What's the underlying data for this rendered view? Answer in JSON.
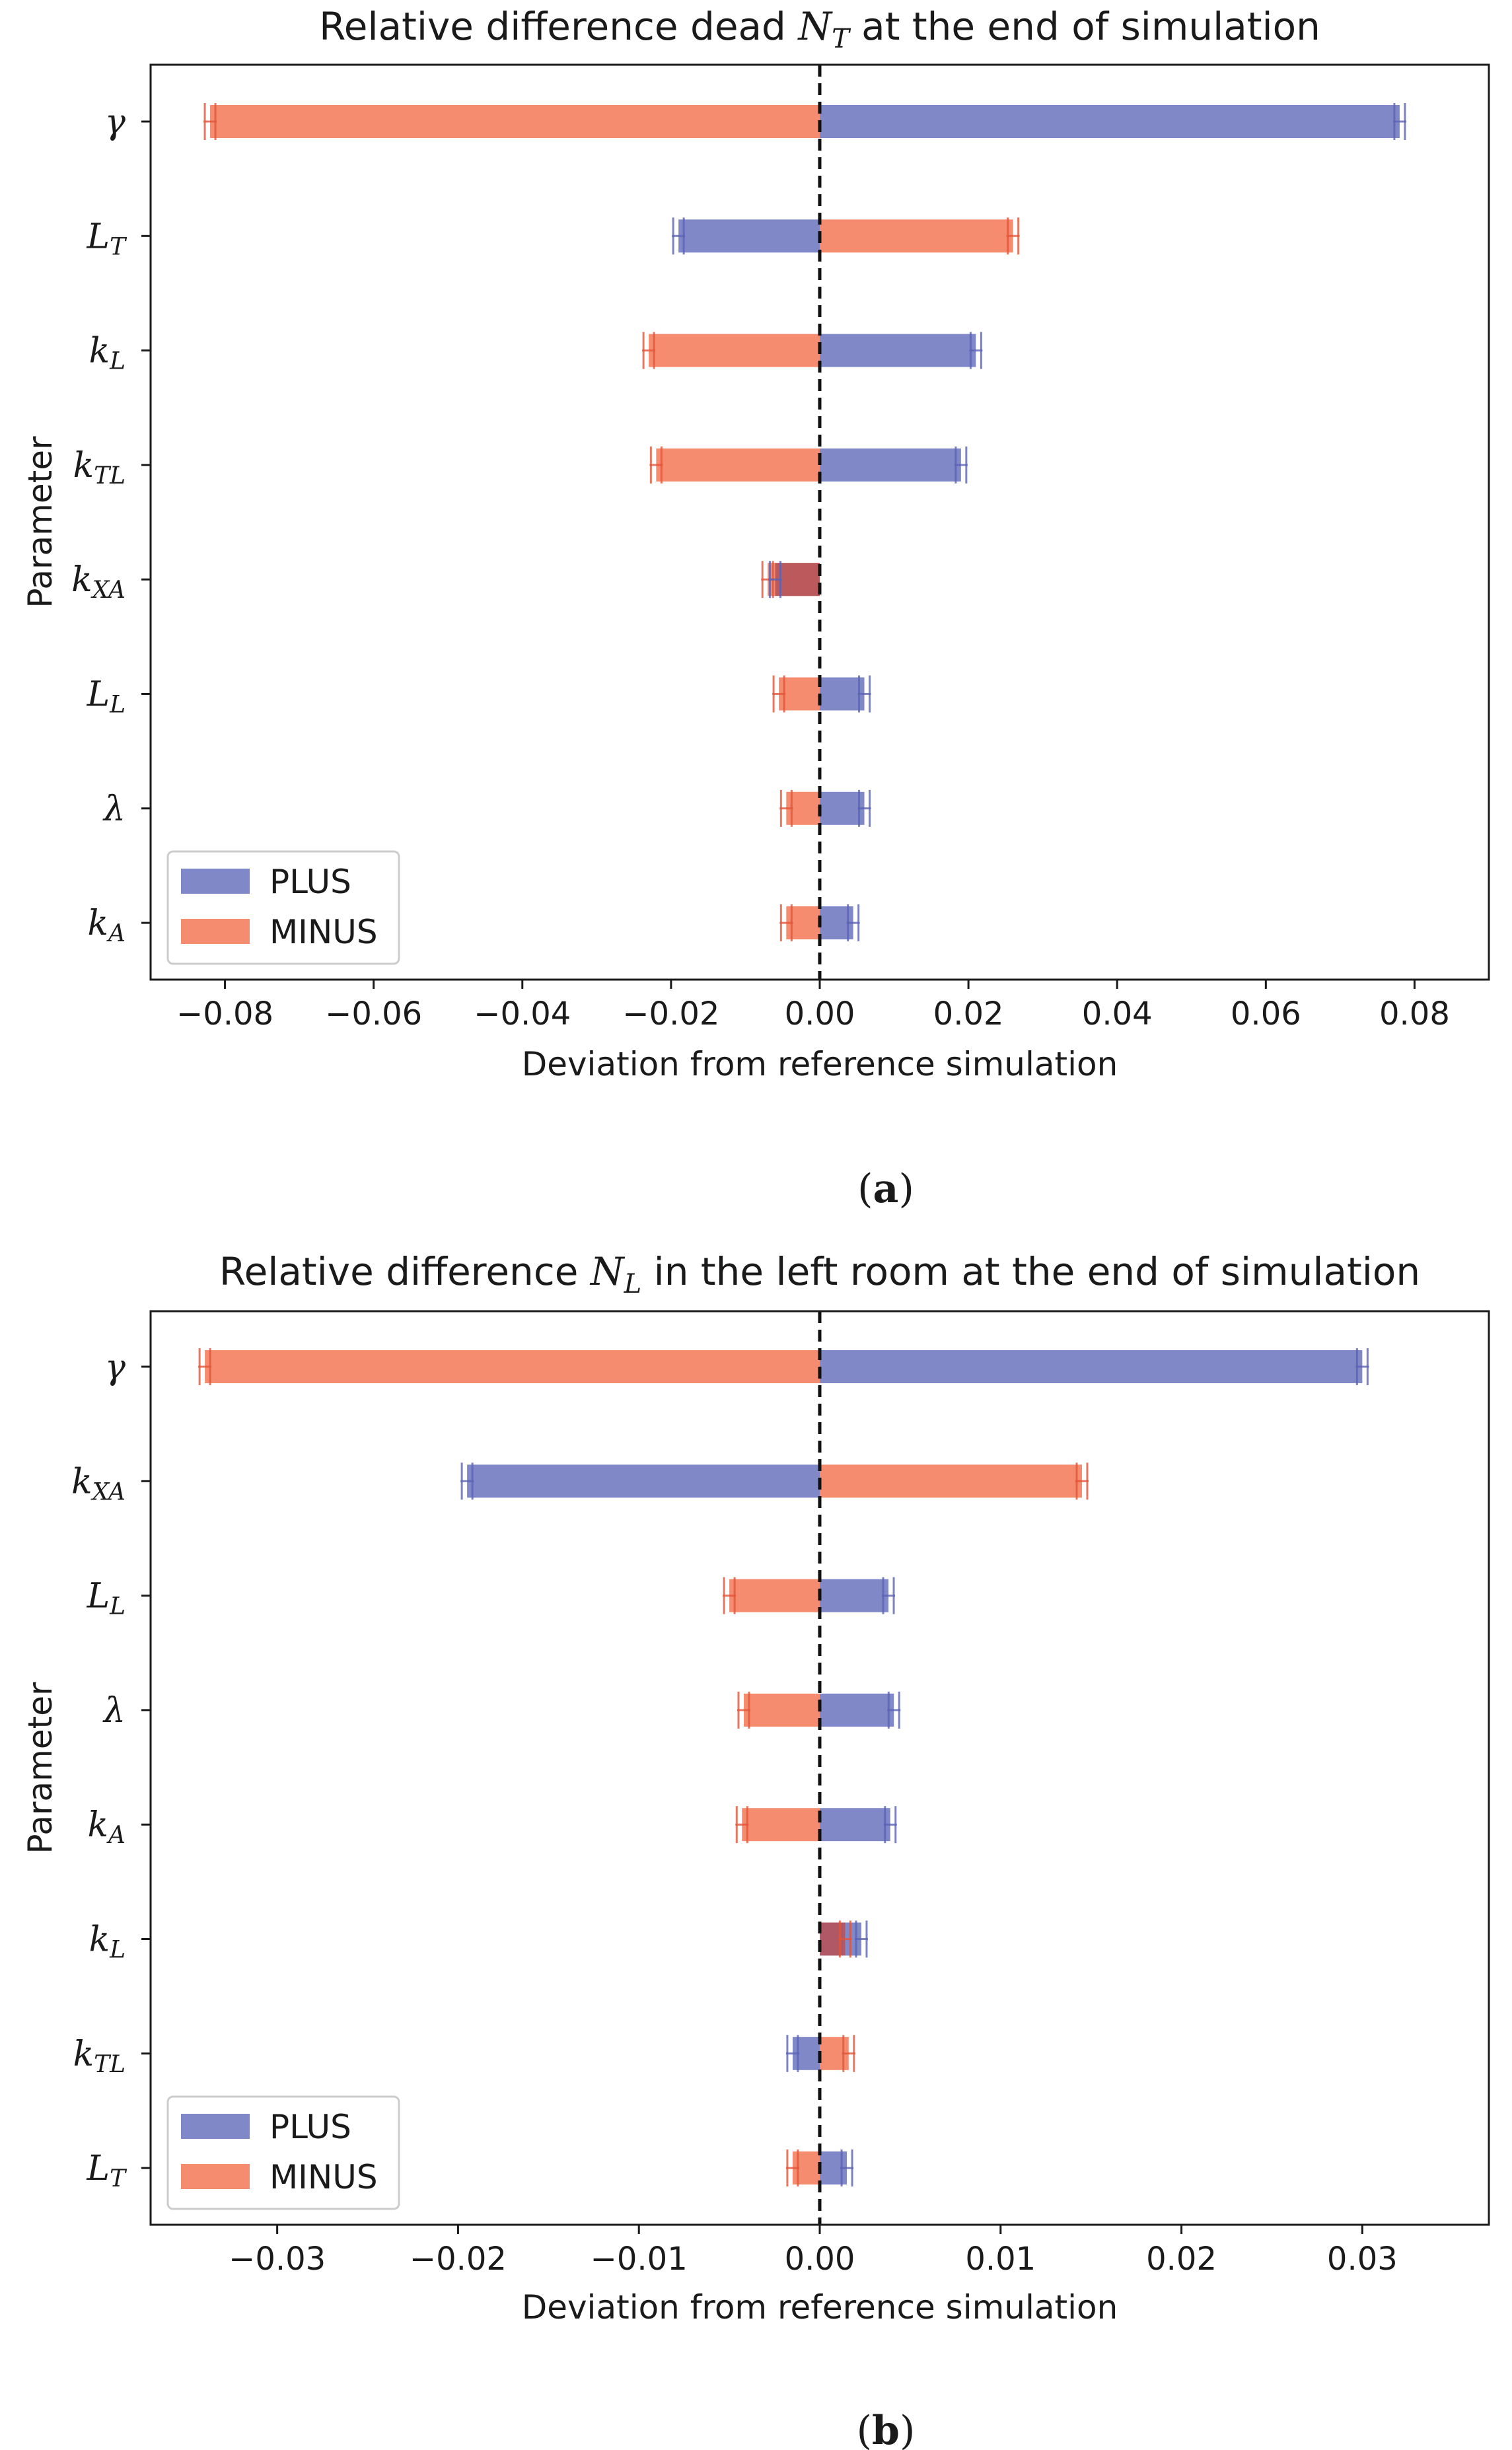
{
  "colors": {
    "plus": "#8088c8",
    "minus": "#f58c70",
    "plus_cap": "#5b63b3",
    "minus_cap": "#e2553a",
    "overlap": "#b5535b"
  },
  "legend": {
    "plus": "PLUS",
    "minus": "MINUS",
    "location": "lower-left"
  },
  "chart_data": [
    {
      "type": "bar",
      "orientation": "horizontal",
      "title_prefix": "Relative difference dead ",
      "title_var": "N",
      "title_sub": "T",
      "title_suffix": " at the end of simulation",
      "xlabel": "Deviation from reference simulation",
      "ylabel": "Parameter",
      "xlim": [
        -0.09,
        0.09
      ],
      "xticks": [
        -0.08,
        -0.06,
        -0.04,
        -0.02,
        0.0,
        0.02,
        0.04,
        0.06,
        0.08
      ],
      "xtick_labels": [
        "−0.08",
        "−0.06",
        "−0.04",
        "−0.02",
        "0.00",
        "0.02",
        "0.04",
        "0.06",
        "0.08"
      ],
      "categories": [
        {
          "sym": "γ",
          "sub": ""
        },
        {
          "sym": "L",
          "sub": "T"
        },
        {
          "sym": "k",
          "sub": "L"
        },
        {
          "sym": "k",
          "sub": "TL"
        },
        {
          "sym": "k",
          "sub": "XA"
        },
        {
          "sym": "L",
          "sub": "L"
        },
        {
          "sym": "λ",
          "sub": ""
        },
        {
          "sym": "k",
          "sub": "A"
        }
      ],
      "series": [
        {
          "name": "PLUS",
          "values": [
            0.078,
            -0.019,
            0.021,
            0.019,
            -0.006,
            0.006,
            0.006,
            0.0045
          ]
        },
        {
          "name": "MINUS",
          "values": [
            -0.082,
            0.026,
            -0.023,
            -0.022,
            -0.007,
            -0.0055,
            -0.0045,
            -0.0045
          ]
        }
      ],
      "caption": "a"
    },
    {
      "type": "bar",
      "orientation": "horizontal",
      "title_prefix": "Relative difference ",
      "title_var": "N",
      "title_sub": "L",
      "title_suffix": " in the left room at the end of simulation",
      "xlabel": "Deviation from reference simulation",
      "ylabel": "Parameter",
      "xlim": [
        -0.037,
        0.037
      ],
      "xticks": [
        -0.03,
        -0.02,
        -0.01,
        0.0,
        0.01,
        0.02,
        0.03
      ],
      "xtick_labels": [
        "−0.03",
        "−0.02",
        "−0.01",
        "0.00",
        "0.01",
        "0.02",
        "0.03"
      ],
      "categories": [
        {
          "sym": "γ",
          "sub": ""
        },
        {
          "sym": "k",
          "sub": "XA"
        },
        {
          "sym": "L",
          "sub": "L"
        },
        {
          "sym": "λ",
          "sub": ""
        },
        {
          "sym": "k",
          "sub": "A"
        },
        {
          "sym": "k",
          "sub": "L"
        },
        {
          "sym": "k",
          "sub": "TL"
        },
        {
          "sym": "L",
          "sub": "T"
        }
      ],
      "series": [
        {
          "name": "PLUS",
          "values": [
            0.03,
            -0.0195,
            0.0038,
            0.0041,
            0.0039,
            0.0023,
            -0.0015,
            0.0015
          ]
        },
        {
          "name": "MINUS",
          "values": [
            -0.034,
            0.0145,
            -0.005,
            -0.0042,
            -0.0043,
            0.0014,
            0.0016,
            -0.0015
          ]
        }
      ],
      "caption": "b"
    }
  ]
}
